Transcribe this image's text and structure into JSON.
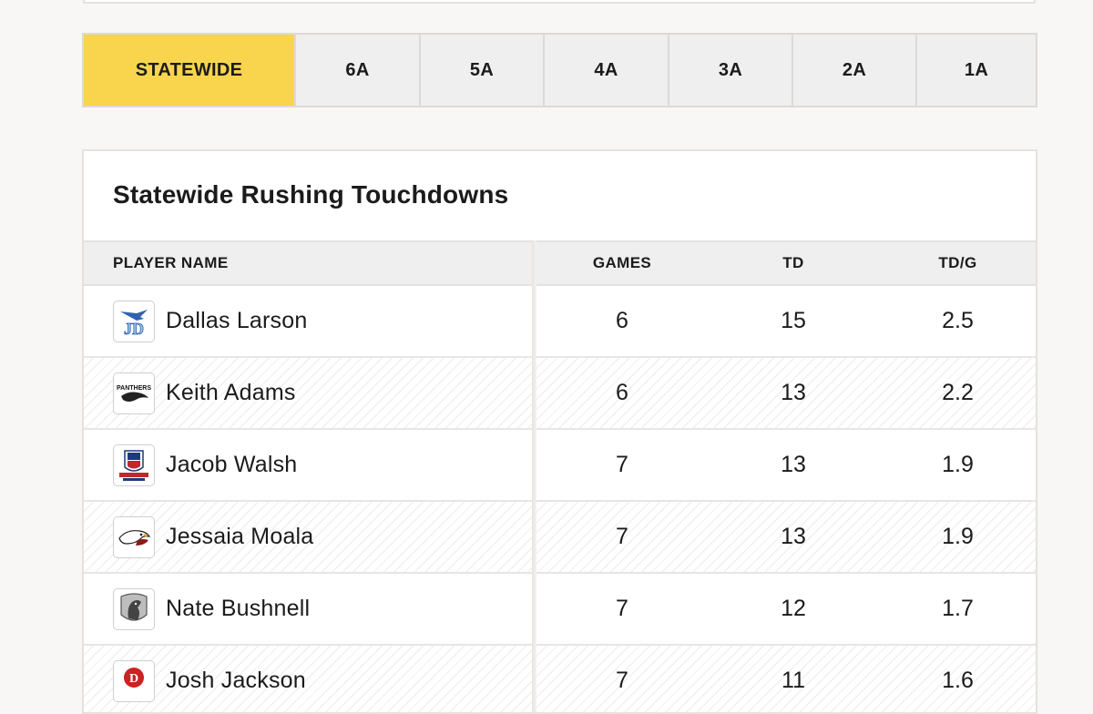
{
  "tabs": [
    {
      "label": "STATEWIDE",
      "active": true
    },
    {
      "label": "6A",
      "active": false
    },
    {
      "label": "5A",
      "active": false
    },
    {
      "label": "4A",
      "active": false
    },
    {
      "label": "3A",
      "active": false
    },
    {
      "label": "2A",
      "active": false
    },
    {
      "label": "1A",
      "active": false
    }
  ],
  "table": {
    "title": "Statewide Rushing Touchdowns",
    "columns": {
      "player": "PLAYER NAME",
      "games": "GAMES",
      "td": "TD",
      "tdg": "TD/G"
    },
    "rows": [
      {
        "name": "Dallas Larson",
        "games": "6",
        "td": "15",
        "tdg": "2.5",
        "logo": "jd-blue-bird-logo",
        "logo_color": "#3a73c4"
      },
      {
        "name": "Keith Adams",
        "games": "6",
        "td": "13",
        "tdg": "2.2",
        "logo": "panthers-logo",
        "logo_color": "#222222"
      },
      {
        "name": "Jacob Walsh",
        "games": "7",
        "td": "13",
        "tdg": "1.9",
        "logo": "providence-hall-patriots-logo",
        "logo_color": "#c2272d"
      },
      {
        "name": "Jessaia Moala",
        "games": "7",
        "td": "13",
        "tdg": "1.9",
        "logo": "eagle-logo",
        "logo_color": "#8b1a1a"
      },
      {
        "name": "Nate Bushnell",
        "games": "7",
        "td": "12",
        "tdg": "1.7",
        "logo": "mustang-logo",
        "logo_color": "#777777"
      },
      {
        "name": "Josh Jackson",
        "games": "7",
        "td": "11",
        "tdg": "1.6",
        "logo": "d-mascot-logo",
        "logo_color": "#cc2222"
      }
    ]
  },
  "colors": {
    "accent_yellow": "#f8d54c",
    "background": "#f9f7f5",
    "header_gray": "#efefef"
  }
}
